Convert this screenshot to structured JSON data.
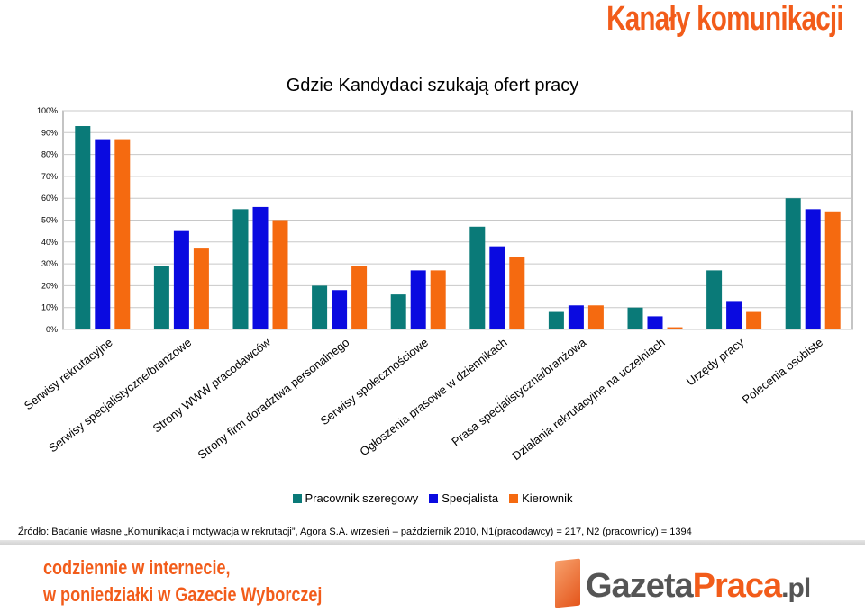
{
  "header": {
    "title": "Kanały komunikacji"
  },
  "source": "Źródło: Badanie własne „Komunikacja i motywacja w rekrutacji”, Agora S.A. wrzesień – październik 2010, N1(pracodawcy) = 217, N2 (pracownicy) = 1394",
  "footer": {
    "promo_line1": "codziennie w internecie,",
    "promo_line2": "w poniedziałki w Gazecie Wyborczej",
    "logo_part1": "Gazeta",
    "logo_part2": "Praca",
    "logo_part3": ".pl"
  },
  "chart_data": {
    "type": "bar",
    "title": "Gdzie Kandydaci szukają ofert pracy",
    "xlabel": "",
    "ylabel": "",
    "ylim": [
      0,
      100
    ],
    "yticks": [
      "0%",
      "10%",
      "20%",
      "30%",
      "40%",
      "50%",
      "60%",
      "70%",
      "80%",
      "90%",
      "100%"
    ],
    "categories": [
      "Serwisy rekrutacyjne",
      "Serwisy specjalistyczne/branżowe",
      "Strony WWW pracodawców",
      "Strony firm doradztwa personalnego",
      "Serwisy społecznościowe",
      "Ogłoszenia prasowe w dziennikach",
      "Prasa specjalistyczna/branżowa",
      "Działania rekrutacyjne na uczelniach",
      "Urzędy pracy",
      "Polecenia osobiste"
    ],
    "series": [
      {
        "name": "Pracownik szeregowy",
        "color": "#0a7a78",
        "values": [
          93,
          29,
          55,
          20,
          16,
          47,
          8,
          10,
          27,
          60
        ]
      },
      {
        "name": "Specjalista",
        "color": "#0a0ae0",
        "values": [
          87,
          45,
          56,
          18,
          27,
          38,
          11,
          6,
          13,
          55
        ]
      },
      {
        "name": "Kierownik",
        "color": "#f56a10",
        "values": [
          87,
          37,
          50,
          29,
          27,
          33,
          11,
          1,
          8,
          54
        ]
      }
    ],
    "legend_position": "bottom",
    "grid": true
  }
}
